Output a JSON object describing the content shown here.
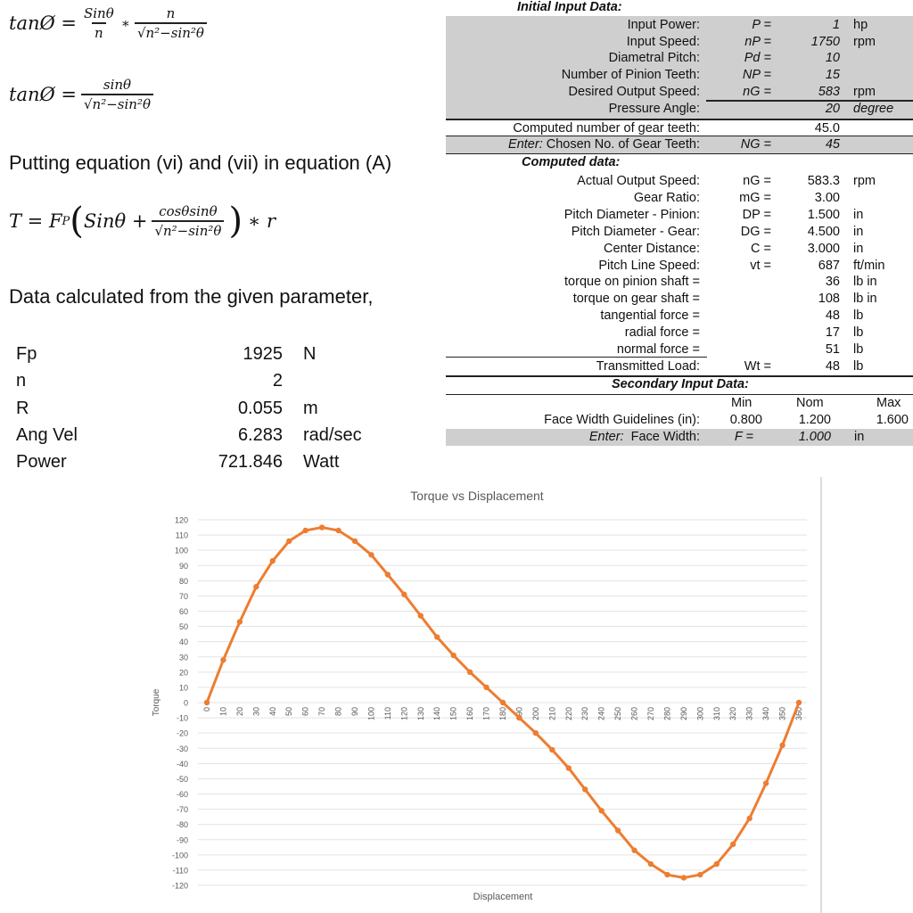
{
  "equations": {
    "eq1": {
      "lhs": "tanØ =",
      "f1_num": "Sinθ",
      "f1_den": "n",
      "op": "∗",
      "f2_num": "n",
      "f2_den": "√n²−sin²θ"
    },
    "eq2": {
      "lhs": "tanØ =",
      "num": "sinθ",
      "den": "√n²−sin²θ"
    },
    "sentence": "Putting equation (vi) and (vii) in equation (A)",
    "eq3": {
      "lhs": "T = F",
      "sub": "P",
      "open": "(",
      "term": "Sinθ +",
      "num": "cosθsinθ",
      "den": "√n²−sin²θ",
      "close": ")",
      "tail": "∗  r"
    },
    "data_sentence": "Data calculated from the given parameter,"
  },
  "params": [
    {
      "name": "Fp",
      "value": "1925",
      "unit": "N"
    },
    {
      "name": "n",
      "value": "2",
      "unit": ""
    },
    {
      "name": "R",
      "value": "0.055",
      "unit": "m"
    },
    {
      "name": "Ang Vel",
      "value": "6.283",
      "unit": "rad/sec"
    },
    {
      "name": "Power",
      "value": "721.846",
      "unit": "Watt"
    }
  ],
  "sheet": {
    "initial_title": "Initial Input Data:",
    "initial": [
      {
        "label": "Input Power:",
        "sym": "P =",
        "val": "1",
        "unit": "hp"
      },
      {
        "label": "Input Speed:",
        "sym": "nP =",
        "val": "1750",
        "unit": "rpm"
      },
      {
        "label": "Diametral Pitch:",
        "sym": "Pd =",
        "val": "10",
        "unit": ""
      },
      {
        "label": "Number of Pinion Teeth:",
        "sym": "NP =",
        "val": "15",
        "unit": ""
      },
      {
        "label": "Desired Output Speed:",
        "sym": "nG =",
        "val": "583",
        "unit": "rpm"
      },
      {
        "label": "Pressure Angle:",
        "sym": "",
        "val": "20",
        "unit": "degree"
      }
    ],
    "computed_teeth": {
      "label": "Computed number of gear teeth:",
      "val": "45.0"
    },
    "chosen_teeth": {
      "enter": "Enter:",
      "label": "Chosen No. of Gear Teeth:",
      "sym": "NG =",
      "val": "45"
    },
    "computed_title": "Computed data:",
    "computed": [
      {
        "label": "Actual Output Speed:",
        "sym": "nG =",
        "val": "583.3",
        "unit": "rpm"
      },
      {
        "label": "Gear Ratio:",
        "sym": "mG =",
        "val": "3.00",
        "unit": ""
      },
      {
        "label": "Pitch Diameter - Pinion:",
        "sym": "DP =",
        "val": "1.500",
        "unit": "in"
      },
      {
        "label": "Pitch Diameter - Gear:",
        "sym": "DG =",
        "val": "4.500",
        "unit": "in"
      },
      {
        "label": "Center Distance:",
        "sym": "C =",
        "val": "3.000",
        "unit": "in"
      },
      {
        "label": "Pitch Line Speed:",
        "sym": "vt =",
        "val": "687",
        "unit": "ft/min"
      },
      {
        "label": "torque on pinion shaft =",
        "sym": "",
        "val": "36",
        "unit": "lb in"
      },
      {
        "label": "torque on gear shaft =",
        "sym": "",
        "val": "108",
        "unit": "lb in"
      },
      {
        "label": "tangential force =",
        "sym": "",
        "val": "48",
        "unit": "lb"
      },
      {
        "label": "radial force =",
        "sym": "",
        "val": "17",
        "unit": "lb"
      },
      {
        "label": "normal force =",
        "sym": "",
        "val": "51",
        "unit": "lb"
      },
      {
        "label": "Transmitted Load:",
        "sym": "Wt =",
        "val": "48",
        "unit": "lb"
      }
    ],
    "secondary_title": "Secondary Input Data:",
    "min": "Min",
    "nom": "Nom",
    "max": "Max",
    "face_guidelines": {
      "label": "Face Width Guidelines (in):",
      "min": "0.800",
      "nom": "1.200",
      "max": "1.600"
    },
    "face_width": {
      "enter": "Enter:",
      "label": "Face Width:",
      "sym": "F =",
      "val": "1.000",
      "unit": "in"
    }
  },
  "chart_data": {
    "type": "line",
    "title": "Torque vs Displacement",
    "xlabel": "Displacement",
    "ylabel": "Torque",
    "x": [
      0,
      10,
      20,
      30,
      40,
      50,
      60,
      70,
      80,
      90,
      100,
      110,
      120,
      130,
      140,
      150,
      160,
      170,
      180,
      190,
      200,
      210,
      220,
      230,
      240,
      250,
      260,
      270,
      280,
      290,
      300,
      310,
      320,
      330,
      340,
      350,
      360
    ],
    "y": [
      0,
      28,
      53,
      76,
      93,
      106,
      113,
      115,
      113,
      106,
      97,
      84,
      71,
      57,
      43,
      31,
      20,
      10,
      0,
      -10,
      -20,
      -31,
      -43,
      -57,
      -71,
      -84,
      -97,
      -106,
      -113,
      -115,
      -113,
      -106,
      -93,
      -76,
      -53,
      -28,
      0
    ],
    "ylim": [
      -120,
      120
    ],
    "ystep": 10,
    "grid": true,
    "color": "#ed7d31"
  }
}
